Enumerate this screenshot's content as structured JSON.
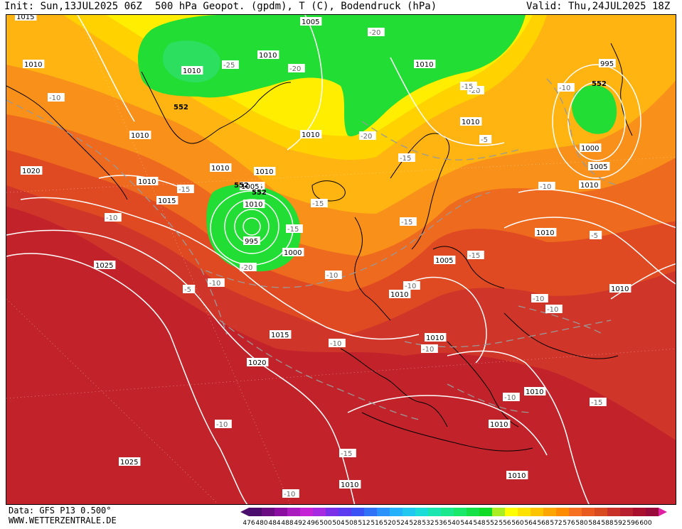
{
  "header": {
    "init": "Init: Sun,13JUL2025 06Z",
    "title": "500 hPa Geopot. (gpdm), T (C), Bodendruck (hPa)",
    "valid": "Valid: Thu,24JUL2025 18Z"
  },
  "footer": {
    "data_source": "Data: GFS P13 0.500°",
    "website": "WWW.WETTERZENTRALE.DE"
  },
  "legend": {
    "values": [
      "476",
      "480",
      "484",
      "488",
      "492",
      "496",
      "500",
      "504",
      "508",
      "512",
      "516",
      "520",
      "524",
      "528",
      "532",
      "536",
      "540",
      "544",
      "548",
      "552",
      "556",
      "560",
      "564",
      "568",
      "572",
      "576",
      "580",
      "584",
      "588",
      "592",
      "596",
      "600"
    ],
    "colors": [
      "#4b0d6b",
      "#6a0d83",
      "#8a0fa0",
      "#a91cbe",
      "#c524d6",
      "#a52ae0",
      "#7a2fe8",
      "#5a3bf0",
      "#3a52f5",
      "#2f72f8",
      "#2a92fa",
      "#24b0fa",
      "#20c8f0",
      "#1cdcd8",
      "#1ce6b0",
      "#1ae88c",
      "#18e86a",
      "#14e048",
      "#10dc28",
      "#aaee22",
      "#ffff00",
      "#ffe200",
      "#ffc400",
      "#ffa500",
      "#ff8c00",
      "#f57020",
      "#e85a20",
      "#d84a20",
      "#c83228",
      "#b82030",
      "#a8102e",
      "#980a3a"
    ]
  },
  "map": {
    "geopotential_labels": [
      "552",
      "552",
      "552",
      "552"
    ],
    "isobar_labels": [
      "1015",
      "1005",
      "1010",
      "1010",
      "1010",
      "1010",
      "1010",
      "1010",
      "1010",
      "1010",
      "1010",
      "1010",
      "1005",
      "1020",
      "1010",
      "1015",
      "1005",
      "995",
      "1000",
      "1025",
      "1015",
      "1020",
      "1025",
      "1010",
      "1010",
      "1010",
      "1005",
      "1010",
      "1000",
      "1005",
      "1010",
      "1010",
      "1010",
      "1010",
      "995",
      "1010"
    ],
    "temperature_labels": [
      "-10",
      "-25",
      "-20",
      "-20",
      "-20",
      "-20",
      "-15",
      "-10",
      "-15",
      "-15",
      "-20",
      "-15",
      "-15",
      "-15",
      "-10",
      "-10",
      "-10",
      "-10",
      "-10",
      "-10",
      "-15",
      "-15",
      "-10",
      "-10",
      "-10",
      "-5",
      "-5",
      "-10",
      "-10",
      "-5",
      "-15",
      "-10"
    ]
  }
}
